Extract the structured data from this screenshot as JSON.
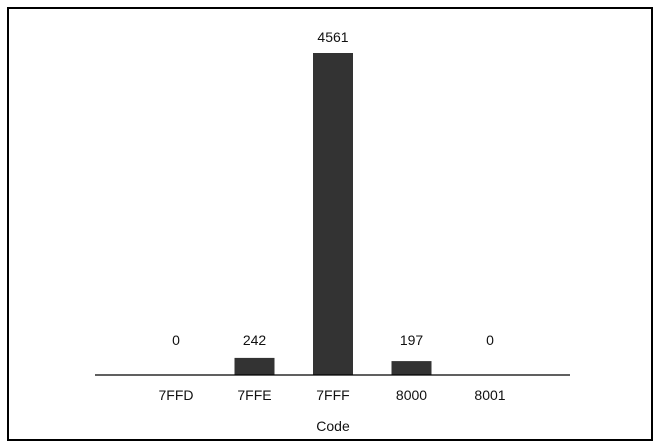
{
  "chart_data": {
    "type": "bar",
    "categories": [
      "7FFD",
      "7FFE",
      "7FFF",
      "8000",
      "8001"
    ],
    "values": [
      0,
      242,
      4561,
      197,
      0
    ],
    "xlabel": "Code",
    "ylabel": "",
    "ylim": [
      0,
      4561
    ],
    "grid": false,
    "legend": "none",
    "data_labels": true,
    "colors": {
      "bar": "#333333",
      "axis": "#000000",
      "text": "#111111",
      "border": "#000000"
    }
  }
}
